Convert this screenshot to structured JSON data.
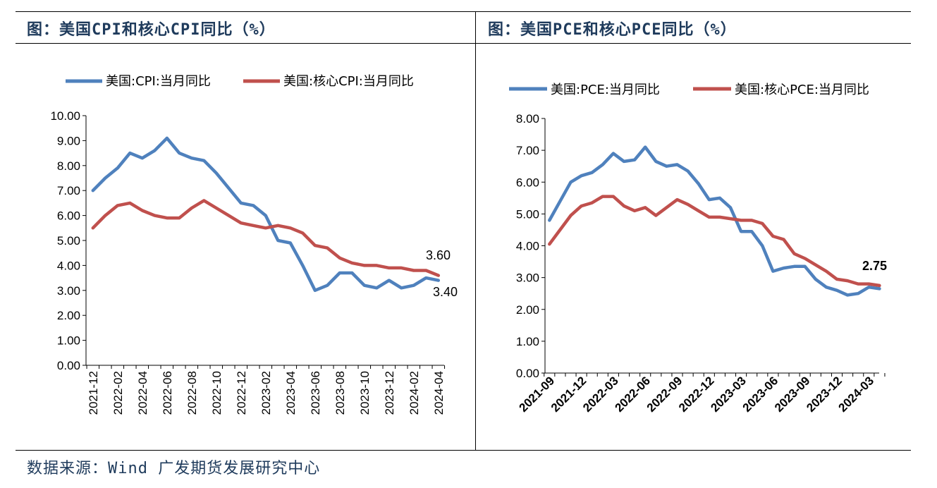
{
  "panels": {
    "left_title": "图：美国CPI和核心CPI同比（%）",
    "right_title": "图：美国PCE和核心PCE同比（%）"
  },
  "source": "数据来源：Wind 广发期货发展研究中心",
  "colors": {
    "series1": "#4f81bd",
    "series2": "#c0504d",
    "title": "#1f3b5c"
  },
  "chart_data": [
    {
      "type": "line",
      "title": "图：美国CPI和核心CPI同比（%）",
      "xlabel": "",
      "ylabel": "",
      "ylim": [
        0,
        10
      ],
      "yticks": [
        "0.00",
        "1.00",
        "2.00",
        "3.00",
        "4.00",
        "5.00",
        "6.00",
        "7.00",
        "8.00",
        "9.00",
        "10.00"
      ],
      "x_tick_labels": [
        "2021-12",
        "2022-02",
        "2022-04",
        "2022-06",
        "2022-08",
        "2022-10",
        "2022-12",
        "2023-02",
        "2023-04",
        "2023-06",
        "2023-08",
        "2023-10",
        "2023-12",
        "2024-02",
        "2024-04"
      ],
      "x": [
        "2021-12",
        "2022-01",
        "2022-02",
        "2022-03",
        "2022-04",
        "2022-05",
        "2022-06",
        "2022-07",
        "2022-08",
        "2022-09",
        "2022-10",
        "2022-11",
        "2022-12",
        "2023-01",
        "2023-02",
        "2023-03",
        "2023-04",
        "2023-05",
        "2023-06",
        "2023-07",
        "2023-08",
        "2023-09",
        "2023-10",
        "2023-11",
        "2023-12",
        "2024-01",
        "2024-02",
        "2024-03",
        "2024-04"
      ],
      "series": [
        {
          "name": "美国:CPI:当月同比",
          "values": [
            7.0,
            7.5,
            7.9,
            8.5,
            8.3,
            8.6,
            9.1,
            8.5,
            8.3,
            8.2,
            7.7,
            7.1,
            6.5,
            6.4,
            6.0,
            5.0,
            4.9,
            4.0,
            3.0,
            3.2,
            3.7,
            3.7,
            3.2,
            3.1,
            3.4,
            3.1,
            3.2,
            3.5,
            3.4
          ]
        },
        {
          "name": "美国:核心CPI:当月同比",
          "values": [
            5.5,
            6.0,
            6.4,
            6.5,
            6.2,
            6.0,
            5.9,
            5.9,
            6.3,
            6.6,
            6.3,
            6.0,
            5.7,
            5.6,
            5.5,
            5.6,
            5.5,
            5.3,
            4.8,
            4.7,
            4.3,
            4.1,
            4.0,
            4.0,
            3.9,
            3.9,
            3.8,
            3.8,
            3.6
          ]
        }
      ],
      "annotations": [
        "3.60",
        "3.40"
      ],
      "legend": "top"
    },
    {
      "type": "line",
      "title": "图：美国PCE和核心PCE同比（%）",
      "xlabel": "",
      "ylabel": "",
      "ylim": [
        0,
        8
      ],
      "yticks": [
        "0.00",
        "1.00",
        "2.00",
        "3.00",
        "4.00",
        "5.00",
        "6.00",
        "7.00",
        "8.00"
      ],
      "x_tick_labels": [
        "2021-09",
        "2021-12",
        "2022-03",
        "2022-06",
        "2022-09",
        "2022-12",
        "2023-03",
        "2023-06",
        "2023-09",
        "2023-12",
        "2024-03"
      ],
      "x": [
        "2021-09",
        "2021-10",
        "2021-11",
        "2021-12",
        "2022-01",
        "2022-02",
        "2022-03",
        "2022-04",
        "2022-05",
        "2022-06",
        "2022-07",
        "2022-08",
        "2022-09",
        "2022-10",
        "2022-11",
        "2022-12",
        "2023-01",
        "2023-02",
        "2023-03",
        "2023-04",
        "2023-05",
        "2023-06",
        "2023-07",
        "2023-08",
        "2023-09",
        "2023-10",
        "2023-11",
        "2023-12",
        "2024-01",
        "2024-02",
        "2024-03",
        "2024-04"
      ],
      "series": [
        {
          "name": "美国:PCE:当月同比",
          "values": [
            4.8,
            5.4,
            6.0,
            6.2,
            6.3,
            6.55,
            6.9,
            6.65,
            6.7,
            7.1,
            6.65,
            6.5,
            6.55,
            6.35,
            5.95,
            5.45,
            5.5,
            5.2,
            4.45,
            4.45,
            4.0,
            3.2,
            3.3,
            3.35,
            3.35,
            2.95,
            2.7,
            2.6,
            2.45,
            2.5,
            2.7,
            2.65
          ]
        },
        {
          "name": "美国:核心PCE:当月同比",
          "values": [
            4.05,
            4.5,
            4.95,
            5.25,
            5.35,
            5.55,
            5.55,
            5.25,
            5.1,
            5.2,
            4.95,
            5.2,
            5.45,
            5.3,
            5.1,
            4.9,
            4.9,
            4.85,
            4.8,
            4.8,
            4.7,
            4.3,
            4.2,
            3.75,
            3.6,
            3.4,
            3.2,
            2.95,
            2.9,
            2.8,
            2.8,
            2.75
          ]
        }
      ],
      "annotations": [
        "2.75"
      ],
      "legend": "top"
    }
  ]
}
